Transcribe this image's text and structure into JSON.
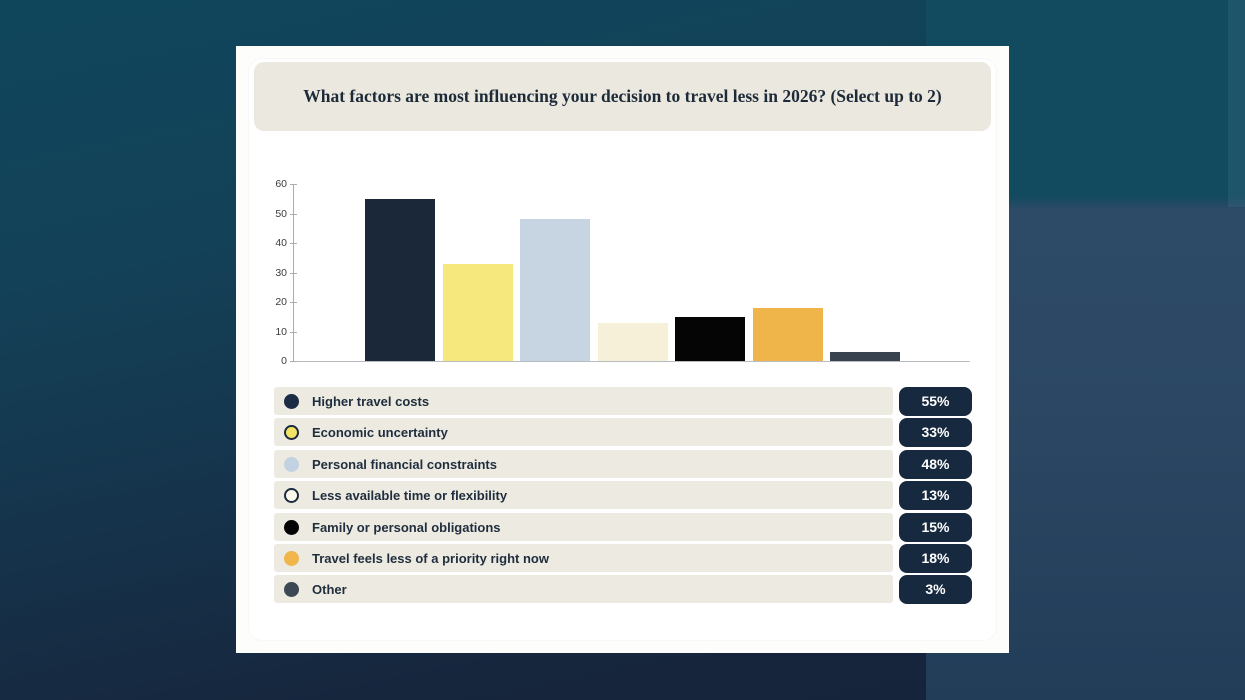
{
  "card": {
    "question": "What factors are most influencing your decision to travel less in 2026? (Select up to 2)",
    "header_bg": "#ebe8e0",
    "card_bg": "#ffffff",
    "text_color": "#1d2a38"
  },
  "background": {
    "left_top_teal": "#0f465c",
    "left_bottom_navy": "#15223a",
    "right_top_teal": "#124a60",
    "right_slate_blue": "#2d4a66",
    "right_bottom_navy": "#213d58"
  },
  "chart_data": {
    "type": "bar",
    "title": "What factors are most influencing your decision to travel less in 2026? (Select up to 2)",
    "categories": [
      "Higher travel costs",
      "Economic uncertainty",
      "Personal financial constraints",
      "Less available time or flexibility",
      "Family or personal obligations",
      "Travel feels less of a priority right now",
      "Other"
    ],
    "values": [
      55,
      33,
      48,
      13,
      15,
      18,
      3
    ],
    "bar_colors": [
      "#1a2839",
      "#f6e87c",
      "#c7d4e1",
      "#f7f0d8",
      "#050505",
      "#efb54a",
      "#39434f"
    ],
    "xlabel": "",
    "ylabel": "",
    "ylim": [
      0,
      60
    ],
    "yticks": [
      0,
      10,
      20,
      30,
      40,
      50,
      60
    ],
    "grid": false,
    "legend_position": "below-as-list"
  },
  "legend": {
    "row_bg": "#edeae2",
    "badge_bg": "#16293f",
    "badge_text_color": "#ffffff",
    "marker_ring_color": "#1b2a3c",
    "items": [
      {
        "label": "Higher travel costs",
        "value": "55%",
        "marker_color": "#1b2c44",
        "marker_ring": false
      },
      {
        "label": "Economic uncertainty",
        "value": "33%",
        "marker_color": "#f3e468",
        "marker_ring": true
      },
      {
        "label": "Personal financial constraints",
        "value": "48%",
        "marker_color": "#c3d2e2",
        "marker_ring": false
      },
      {
        "label": "Less available time or flexibility",
        "value": "13%",
        "marker_color": "#fbf7ea",
        "marker_ring": true
      },
      {
        "label": "Family or personal obligations",
        "value": "15%",
        "marker_color": "#050505",
        "marker_ring": false
      },
      {
        "label": "Travel feels less of a priority right now",
        "value": "18%",
        "marker_color": "#f0b54b",
        "marker_ring": false
      },
      {
        "label": "Other",
        "value": "3%",
        "marker_color": "#3d4855",
        "marker_ring": false
      }
    ]
  }
}
